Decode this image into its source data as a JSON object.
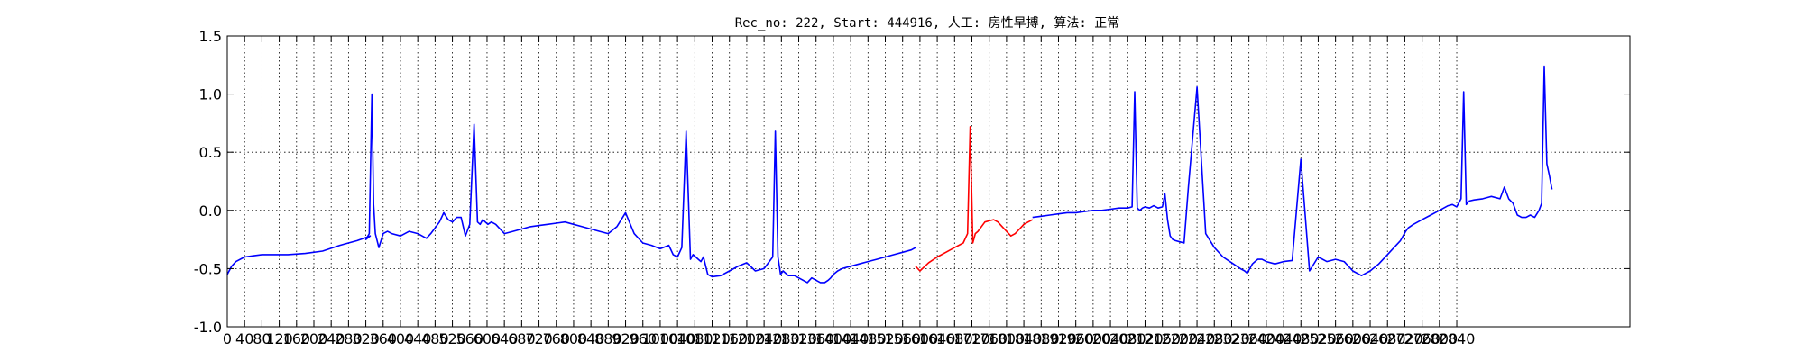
{
  "chart_data": {
    "type": "line",
    "title": "Rec_no: 222, Start: 444916, 人工: 房性早搏, 算法: 正常",
    "xlabel": "",
    "ylabel": "",
    "xlim": [
      0,
      3240
    ],
    "ylim": [
      -1.0,
      1.5
    ],
    "grid": true,
    "y_ticks": [
      {
        "value": 1.5,
        "label": "1.5"
      },
      {
        "value": 1.0,
        "label": "1.0"
      },
      {
        "value": 0.5,
        "label": "0.5"
      },
      {
        "value": 0.0,
        "label": "0.0"
      },
      {
        "value": -0.5,
        "label": "-0.5"
      },
      {
        "value": -1.0,
        "label": "-1.0"
      }
    ],
    "x_ticks": [
      0,
      40,
      80,
      120,
      160,
      200,
      240,
      280,
      320,
      360,
      400,
      440,
      480,
      520,
      560,
      600,
      640,
      680,
      720,
      760,
      800,
      840,
      880,
      920,
      960,
      1000,
      1040,
      1080,
      1120,
      1160,
      1200,
      1240,
      1280,
      1320,
      1360,
      1400,
      1440,
      1480,
      1520,
      1560,
      1600,
      1640,
      1680,
      1720,
      1760,
      1800,
      1840,
      1880,
      1920,
      1960,
      2000,
      2040,
      2080,
      2120,
      2160,
      2200,
      2240,
      2280,
      2320,
      2360,
      2400,
      2440,
      2480,
      2520,
      2560,
      2600,
      2640,
      2680,
      2720,
      2760,
      2800,
      2840
    ],
    "x_tick_labels": [
      "0",
      "40",
      "80",
      "120",
      "160",
      "200",
      "240",
      "280",
      "320",
      "360",
      "400",
      "440",
      "480",
      "520",
      "560",
      "600",
      "640",
      "680",
      "720",
      "760",
      "800",
      "840",
      "880",
      "920",
      "960",
      "1000",
      "1040",
      "1080",
      "1120",
      "1160",
      "1200",
      "1240",
      "1280",
      "1320",
      "1360",
      "1400",
      "1440",
      "1480",
      "1520",
      "1560",
      "1600",
      "1640",
      "1680",
      "1720",
      "1760",
      "1800",
      "1840",
      "1880",
      "1920",
      "1960",
      "2000",
      "2040",
      "2080",
      "2120",
      "2160",
      "2200",
      "2240",
      "2280",
      "2320",
      "2360",
      "2400",
      "2440",
      "2480",
      "2520",
      "2560",
      "2600",
      "2640",
      "2680",
      "2720",
      "2760",
      "2800",
      "2840"
    ],
    "series": [
      {
        "color": "#0000ff",
        "x": [
          0,
          10,
          20,
          40,
          60,
          80,
          100,
          140,
          180,
          220,
          260,
          300,
          330,
          320,
          328,
          334,
          338,
          342,
          350,
          360,
          370,
          380,
          400,
          420,
          440,
          460,
          470,
          480,
          490,
          500,
          510,
          520,
          530,
          540,
          550,
          560,
          570,
          578,
          584,
          590,
          596,
          602,
          610,
          620,
          640,
          660,
          680,
          700,
          720,
          740,
          760,
          780,
          800,
          820,
          840,
          860,
          880,
          900,
          920,
          940,
          960,
          980,
          1000,
          1020,
          1030,
          1040,
          1050,
          1060,
          1070,
          1076,
          1082,
          1088,
          1094,
          1100,
          1110,
          1120,
          1140,
          1160,
          1180,
          1200,
          1220,
          1240,
          1260,
          1266,
          1272,
          1278,
          1284,
          1290,
          1296,
          1310,
          1320,
          1330,
          1340,
          1350,
          1360,
          1370,
          1380,
          1388,
          1394,
          1400,
          1410,
          1420,
          1440,
          1460,
          1480,
          1500,
          1520,
          1540,
          1560,
          1580,
          1590
        ],
        "y": [
          -0.55,
          -0.48,
          -0.44,
          -0.4,
          -0.39,
          -0.38,
          -0.38,
          -0.38,
          -0.37,
          -0.35,
          -0.3,
          -0.26,
          -0.22,
          -0.25,
          -0.2,
          1.0,
          0.05,
          -0.2,
          -0.32,
          -0.2,
          -0.18,
          -0.2,
          -0.22,
          -0.18,
          -0.2,
          -0.24,
          -0.2,
          -0.15,
          -0.1,
          -0.02,
          -0.08,
          -0.1,
          -0.06,
          -0.06,
          -0.22,
          -0.12,
          0.74,
          -0.1,
          -0.12,
          -0.08,
          -0.1,
          -0.12,
          -0.1,
          -0.12,
          -0.2,
          -0.18,
          -0.16,
          -0.14,
          -0.13,
          -0.12,
          -0.11,
          -0.1,
          -0.12,
          -0.14,
          -0.16,
          -0.18,
          -0.2,
          -0.14,
          -0.02,
          -0.2,
          -0.28,
          -0.3,
          -0.33,
          -0.3,
          -0.38,
          -0.4,
          -0.32,
          0.68,
          -0.42,
          -0.38,
          -0.4,
          -0.42,
          -0.44,
          -0.4,
          -0.55,
          -0.57,
          -0.56,
          -0.52,
          -0.48,
          -0.45,
          -0.52,
          -0.5,
          -0.4,
          0.68,
          -0.4,
          -0.55,
          -0.52,
          -0.54,
          -0.56,
          -0.56,
          -0.58,
          -0.6,
          -0.62,
          -0.58,
          -0.6,
          -0.62,
          -0.62,
          -0.6,
          -0.58,
          -0.55,
          -0.52,
          -0.5,
          -0.48,
          -0.46,
          -0.44,
          -0.42,
          -0.4,
          -0.38,
          -0.36,
          -0.34,
          -0.32
        ]
      },
      {
        "color": "#ff0000",
        "x": [
          1590,
          1600,
          1620,
          1640,
          1660,
          1680,
          1700,
          1710,
          1716,
          1722,
          1728,
          1734,
          1740,
          1750,
          1760,
          1770,
          1780,
          1790,
          1800,
          1810,
          1820,
          1830,
          1840,
          1850,
          1860
        ],
        "y": [
          -0.48,
          -0.52,
          -0.45,
          -0.4,
          -0.36,
          -0.32,
          -0.28,
          -0.2,
          0.72,
          -0.28,
          -0.2,
          -0.18,
          -0.15,
          -0.1,
          -0.09,
          -0.08,
          -0.1,
          -0.14,
          -0.18,
          -0.22,
          -0.2,
          -0.16,
          -0.12,
          -0.1,
          -0.08
        ]
      },
      {
        "color": "#0000ff",
        "x": [
          1860,
          1880,
          1900,
          1920,
          1940,
          1960,
          1980,
          2000,
          2020,
          2040,
          2060,
          2080,
          2090,
          2096,
          2102,
          2108,
          2114,
          2120,
          2130,
          2140,
          2150,
          2160,
          2166,
          2172,
          2178,
          2184,
          2190,
          2200,
          2210,
          2220,
          2240,
          2260,
          2280,
          2300,
          2320,
          2340,
          2350,
          2356,
          2362,
          2368,
          2374,
          2380,
          2390,
          2400,
          2420,
          2440,
          2460,
          2480,
          2500,
          2520,
          2540,
          2560,
          2580,
          2600,
          2620,
          2640,
          2660,
          2680,
          2700,
          2710,
          2716,
          2722,
          2728,
          2740,
          2760,
          2780,
          2790,
          2800,
          2810,
          2820,
          2830,
          2840,
          2850,
          2856,
          2862,
          2868
        ],
        "y": [
          -0.06,
          -0.05,
          -0.04,
          -0.03,
          -0.02,
          -0.02,
          -0.01,
          0.0,
          0.0,
          0.01,
          0.02,
          0.02,
          0.03,
          1.02,
          0.02,
          0.0,
          0.02,
          0.03,
          0.02,
          0.04,
          0.02,
          0.03,
          0.14,
          -0.08,
          -0.22,
          -0.25,
          -0.26,
          -0.27,
          -0.28,
          0.2,
          1.06,
          -0.2,
          -0.32,
          -0.4,
          -0.45,
          -0.5,
          -0.52,
          -0.54,
          -0.5,
          -0.46,
          -0.44,
          -0.42,
          -0.42,
          -0.44,
          -0.46,
          -0.44,
          -0.43,
          0.44,
          -0.52,
          -0.4,
          -0.44,
          -0.42,
          -0.44,
          -0.52,
          -0.56,
          -0.52,
          -0.46,
          -0.38,
          -0.3,
          -0.26,
          -0.22,
          -0.18,
          -0.15,
          -0.12,
          -0.08,
          -0.04,
          -0.02,
          0.0,
          0.02,
          0.04,
          0.05,
          0.03,
          0.1,
          1.02,
          0.05,
          0.08
        ]
      },
      {
        "color": "#0000ff",
        "x": [
          2868,
          2880,
          2900,
          2920,
          2940,
          2950,
          2960,
          2970,
          2980,
          2990,
          3000,
          3010,
          3020,
          3030,
          3036,
          3042,
          3048,
          3054,
          3060
        ],
        "y": [
          0.08,
          0.09,
          0.1,
          0.12,
          0.1,
          0.2,
          0.1,
          0.06,
          -0.04,
          -0.06,
          -0.06,
          -0.04,
          -0.06,
          0.0,
          0.06,
          1.24,
          0.4,
          0.3,
          0.18
        ]
      }
    ]
  }
}
